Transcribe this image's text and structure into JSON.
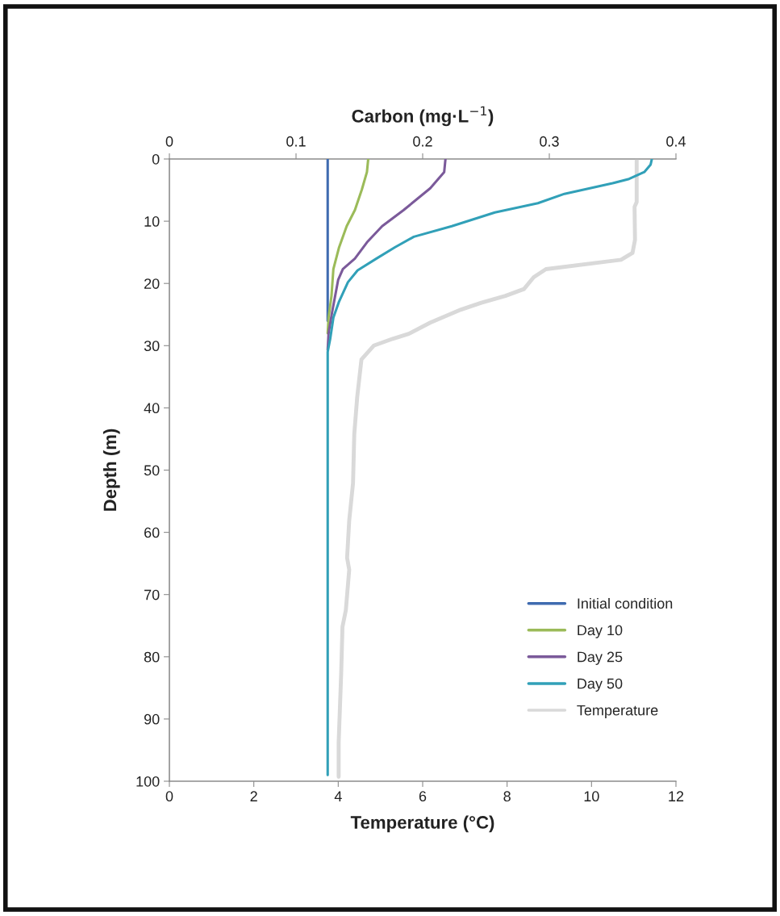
{
  "chart_data": {
    "type": "line",
    "xlabel": "Temperature (°C)",
    "x2label": "Carbon (mg·L$^{−1}$)",
    "ylabel": "Depth (m)",
    "xlim": [
      0,
      12
    ],
    "xticks": [
      0,
      2,
      4,
      6,
      8,
      10,
      12
    ],
    "x2lim": [
      0,
      0.4
    ],
    "x2ticks": [
      0,
      0.1,
      0.2,
      0.3,
      0.4
    ],
    "ylim": [
      100,
      0
    ],
    "yticks": [
      0,
      10,
      20,
      30,
      40,
      50,
      60,
      70,
      80,
      90,
      100
    ],
    "grid": false,
    "legend": "bottom right",
    "marker": "none",
    "line_style": "solid",
    "series": [
      {
        "name": "Initial condition",
        "color": "#3f6bb0",
        "axis": "x2",
        "x": [
          0.125,
          0.125
        ],
        "values": [
          0,
          26
        ]
      },
      {
        "name": "Day 10",
        "color": "#9bbb59",
        "axis": "x2",
        "x": [
          0.157,
          0.156,
          0.152,
          0.1465,
          0.14,
          0.134,
          0.1295,
          0.128,
          0.1257,
          0.125
        ],
        "values": [
          0,
          2.1,
          4.9,
          8.2,
          10.8,
          14.2,
          17.7,
          22,
          25.5,
          28
        ]
      },
      {
        "name": "Day 25",
        "color": "#7b5a9a",
        "axis": "x2",
        "x": [
          0.218,
          0.217,
          0.206,
          0.185,
          0.168,
          0.156,
          0.1465,
          0.137,
          0.1333,
          0.1285,
          0.1257,
          0.125
        ],
        "values": [
          0,
          2.1,
          4.7,
          8.2,
          10.8,
          13.4,
          16,
          17.7,
          19.4,
          24.6,
          28,
          30.7
        ]
      },
      {
        "name": "Day 50",
        "color": "#31a0b8",
        "axis": "x2",
        "x": [
          0.381,
          0.38,
          0.375,
          0.363,
          0.35,
          0.312,
          0.291,
          0.257,
          0.223,
          0.193,
          0.178,
          0.1635,
          0.1486,
          0.141,
          0.134,
          0.1295,
          0.127,
          0.125,
          0.125
        ],
        "values": [
          0,
          0.9,
          2.1,
          3.2,
          3.9,
          5.6,
          7.1,
          8.6,
          10.8,
          12.5,
          14.2,
          16,
          17.9,
          19.8,
          22.9,
          25.5,
          28.9,
          31,
          99
        ]
      },
      {
        "name": "Temperature",
        "color": "#d9d9d9",
        "x": [
          11.07,
          11.07,
          11.02,
          11.03,
          10.97,
          10.7,
          8.92,
          8.63,
          8.4,
          7.96,
          7.39,
          6.91,
          6.18,
          5.67,
          5.29,
          4.84,
          4.55,
          4.45,
          4.38,
          4.35,
          4.26,
          4.21,
          4.26,
          4.18,
          4.1,
          4.07,
          4.04,
          4.01,
          4.01
        ],
        "values": [
          0,
          6.9,
          7.7,
          13,
          15.1,
          16.2,
          17.7,
          19,
          20.9,
          22,
          23.1,
          24.2,
          26.3,
          28.1,
          28.9,
          30,
          32.2,
          38.2,
          44.2,
          52.1,
          58.1,
          64.1,
          66,
          72.5,
          75.2,
          82.6,
          88.2,
          93.8,
          99.3
        ]
      }
    ]
  }
}
